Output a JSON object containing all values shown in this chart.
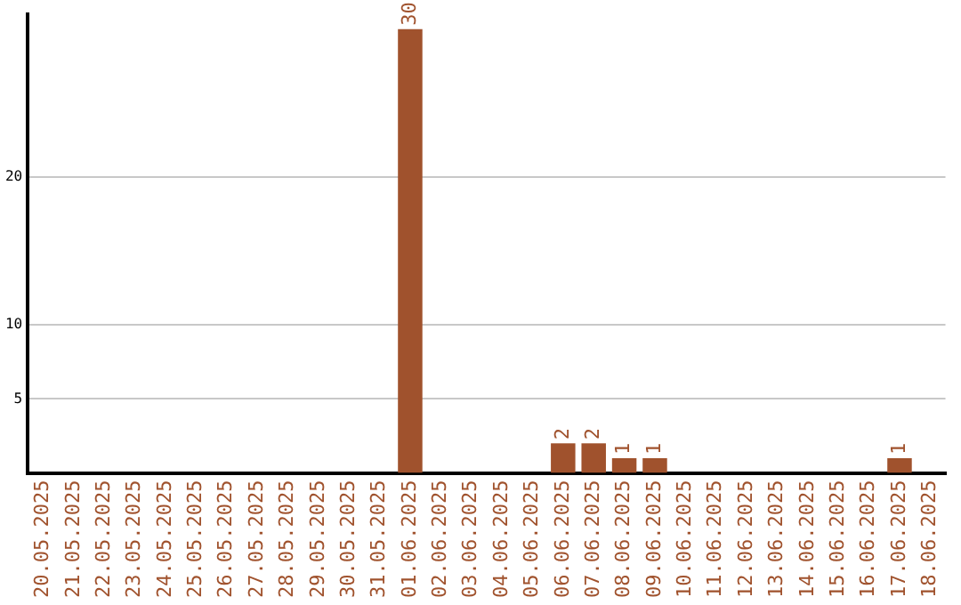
{
  "chart_data": {
    "type": "bar",
    "categories": [
      "20.05.2025",
      "21.05.2025",
      "22.05.2025",
      "23.05.2025",
      "24.05.2025",
      "25.05.2025",
      "26.05.2025",
      "27.05.2025",
      "28.05.2025",
      "29.05.2025",
      "30.05.2025",
      "31.05.2025",
      "01.06.2025",
      "02.06.2025",
      "03.06.2025",
      "04.06.2025",
      "05.06.2025",
      "06.06.2025",
      "07.06.2025",
      "08.06.2025",
      "09.06.2025",
      "10.06.2025",
      "11.06.2025",
      "12.06.2025",
      "13.06.2025",
      "14.06.2025",
      "15.06.2025",
      "16.06.2025",
      "17.06.2025",
      "18.06.2025"
    ],
    "values": [
      0,
      0,
      0,
      0,
      0,
      0,
      0,
      0,
      0,
      0,
      0,
      0,
      30,
      0,
      0,
      0,
      0,
      2,
      2,
      1,
      1,
      0,
      0,
      0,
      0,
      0,
      0,
      0,
      1,
      0
    ],
    "value_labels": [
      null,
      null,
      null,
      null,
      null,
      null,
      null,
      null,
      null,
      null,
      null,
      null,
      "30",
      null,
      null,
      null,
      null,
      "2",
      "2",
      "1",
      "1",
      null,
      null,
      null,
      null,
      null,
      null,
      null,
      "1",
      null
    ],
    "color": "#a0522d",
    "ylim": [
      0,
      31
    ],
    "yticks": [
      5,
      10,
      20
    ],
    "grid": "y",
    "legend": false
  }
}
